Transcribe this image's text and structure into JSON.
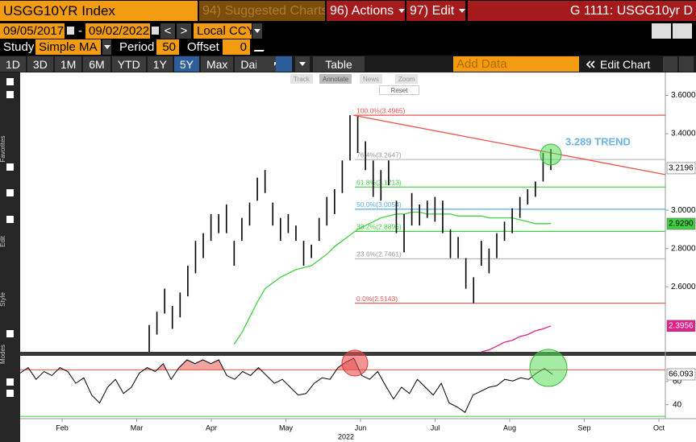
{
  "header": {
    "ticker": "USGG10YR Index",
    "suggested": "94) Suggested Charts",
    "actions": "96) Actions",
    "edit": "97) Edit",
    "page": "G 1111: USGG10yr D"
  },
  "range": {
    "start": "09/05/2017",
    "separator": "-",
    "end": "09/02/2022",
    "prev": "<",
    "next": ">",
    "currency": "Local CCY"
  },
  "study": {
    "label": "Study",
    "name": "Simple MA",
    "period_label": "Period",
    "period": 50,
    "offset_label": "Offset",
    "offset": 0
  },
  "toolbar": {
    "periods": [
      "1D",
      "3D",
      "1M",
      "6M",
      "YTD",
      "1Y",
      "5Y",
      "Max"
    ],
    "selected_period": 6,
    "frequency": "Daily",
    "table": "Table",
    "add_data": "Add Data",
    "edit_chart": "Edit Chart"
  },
  "sidebar": [
    "Favorites",
    "Edit",
    "Style",
    "Modes"
  ],
  "chart_tools": {
    "items": [
      "Track",
      "Annotate",
      "News",
      "Zoom"
    ],
    "reset": "Reset"
  },
  "chart_data": {
    "type": "ohlc",
    "ylim": [
      2.26,
      3.72
    ],
    "yticks": [
      {
        "value": 3.6,
        "label": "3.6000"
      },
      {
        "value": 3.4,
        "label": "3.4000"
      },
      {
        "value": 3.0,
        "label": "3.0000"
      },
      {
        "value": 2.8,
        "label": "2.8000"
      },
      {
        "value": 2.6,
        "label": "2.6000"
      }
    ],
    "months": [
      "Feb",
      "Mar",
      "Apr",
      "May",
      "Jun",
      "Jul",
      "Aug",
      "Sep",
      "Oct"
    ],
    "year": "2022",
    "price": {
      "color": "#000000",
      "low": [
        2.26,
        2.35,
        2.46,
        2.38,
        2.44,
        2.55,
        2.67,
        2.75,
        2.84,
        2.88,
        2.88,
        2.71,
        2.84,
        2.92,
        3.05,
        3.09,
        2.92,
        2.84,
        2.88,
        2.84,
        2.71,
        2.75,
        2.84,
        2.92,
        2.98,
        3.09,
        3.26,
        3.3,
        3.21,
        3.07,
        3.05,
        3.13,
        2.88,
        2.78,
        2.92,
        2.92,
        2.96,
        2.94,
        2.88,
        2.75,
        2.75,
        2.59,
        2.5143,
        2.71,
        2.67,
        2.75,
        2.84,
        2.88,
        2.96,
        3.03,
        3.07,
        3.15,
        3.21
      ],
      "high": [
        2.4,
        2.47,
        2.59,
        2.5,
        2.57,
        2.71,
        2.84,
        2.88,
        2.98,
        2.98,
        3.03,
        2.84,
        2.96,
        3.04,
        3.17,
        3.21,
        3.04,
        2.96,
        2.98,
        2.92,
        2.84,
        2.82,
        2.96,
        3.07,
        3.11,
        3.26,
        3.4965,
        3.49,
        3.36,
        3.26,
        3.21,
        3.26,
        3.05,
        2.98,
        3.09,
        3.03,
        3.05,
        3.07,
        3.05,
        2.9,
        2.86,
        2.75,
        2.65,
        2.84,
        2.8,
        2.88,
        2.94,
        3.01,
        3.07,
        3.11,
        3.15,
        3.3,
        3.32
      ],
      "last": {
        "value": 3.2196,
        "label": "3.2196"
      }
    },
    "ma50": {
      "color": "#3fd13f",
      "values": [
        null,
        null,
        null,
        null,
        null,
        null,
        null,
        null,
        null,
        null,
        null,
        2.3,
        2.36,
        2.44,
        2.52,
        2.59,
        2.62,
        2.65,
        2.67,
        2.69,
        2.7,
        2.71,
        2.74,
        2.77,
        2.81,
        2.84,
        2.87,
        2.9,
        2.92,
        2.94,
        2.96,
        2.97,
        2.98,
        2.98,
        2.99,
        2.99,
        2.98,
        2.98,
        2.98,
        2.98,
        2.97,
        2.97,
        2.97,
        2.97,
        2.96,
        2.96,
        2.96,
        2.96,
        2.95,
        2.94,
        2.93,
        2.93,
        2.93
      ],
      "last": {
        "value": 2.929,
        "label": "2.9290"
      }
    },
    "ma200": {
      "color": "#e0218a",
      "values": [
        null,
        null,
        null,
        null,
        null,
        null,
        null,
        null,
        null,
        null,
        null,
        null,
        null,
        null,
        null,
        null,
        null,
        null,
        null,
        null,
        null,
        null,
        null,
        null,
        null,
        null,
        null,
        null,
        null,
        null,
        null,
        null,
        null,
        null,
        null,
        null,
        null,
        null,
        null,
        null,
        null,
        null,
        null,
        2.26,
        2.27,
        2.29,
        2.31,
        2.32,
        2.34,
        2.35,
        2.37,
        2.38,
        2.3956
      ],
      "last": {
        "value": 2.3956,
        "label": "2.3956"
      }
    },
    "fib": [
      {
        "label": "100.0%(3.4965)",
        "value": 3.4965,
        "color": "#e8554e"
      },
      {
        "label": "76.4%(3.2647)",
        "value": 3.2647,
        "color": "#b8b8b8"
      },
      {
        "label": "61.8%(3.1213)",
        "value": 3.1213,
        "color": "#3fd13f"
      },
      {
        "label": "50.0%(3.0054)",
        "value": 3.0054,
        "color": "#5aaee8"
      },
      {
        "label": "38.2%(2.8895)",
        "value": 2.8895,
        "color": "#3fd13f"
      },
      {
        "label": "23.6%(2.7461)",
        "value": 2.7461,
        "color": "#b8b8b8"
      },
      {
        "label": "0.0%(2.5143)",
        "value": 2.5143,
        "color": "#e8554e"
      }
    ],
    "trend_line": {
      "start": 3.4965,
      "end": 3.186,
      "color": "#e8554e"
    },
    "annotation": {
      "text": "3.289 TREND",
      "color": "#6fb4e8"
    },
    "rsi": {
      "type": "line",
      "color": "#000000",
      "ylim": [
        28,
        82
      ],
      "yticks": [
        60,
        40
      ],
      "overbought": 70,
      "oversold": 30,
      "overbought_color": "#e8554e",
      "oversold_color": "#3fd13f",
      "fill_color": "#f4a3a3",
      "values": [
        67.2,
        71.9,
        61.8,
        68.5,
        65.1,
        71.9,
        68.5,
        58.4,
        63.1,
        48.3,
        41.5,
        55.0,
        61.8,
        49.6,
        55.0,
        67.2,
        71.9,
        68.5,
        75.3,
        61.8,
        71.9,
        78.6,
        75.3,
        78.6,
        75.3,
        78.6,
        65.1,
        61.8,
        68.5,
        65.1,
        71.9,
        65.1,
        58.4,
        61.8,
        55.0,
        48.3,
        49.6,
        58.4,
        63.1,
        61.8,
        71.9,
        76.6,
        80.0,
        65.1,
        61.8,
        68.5,
        56.4,
        44.9,
        55.0,
        49.6,
        61.8,
        55.0,
        48.3,
        58.4,
        41.5,
        38.1,
        33.4,
        48.3,
        51.6,
        55.0,
        56.4,
        61.8,
        60.4,
        63.1,
        61.8,
        67.2,
        71.2,
        66.093
      ],
      "last": {
        "value": 66.093,
        "label": "66.093"
      }
    }
  }
}
